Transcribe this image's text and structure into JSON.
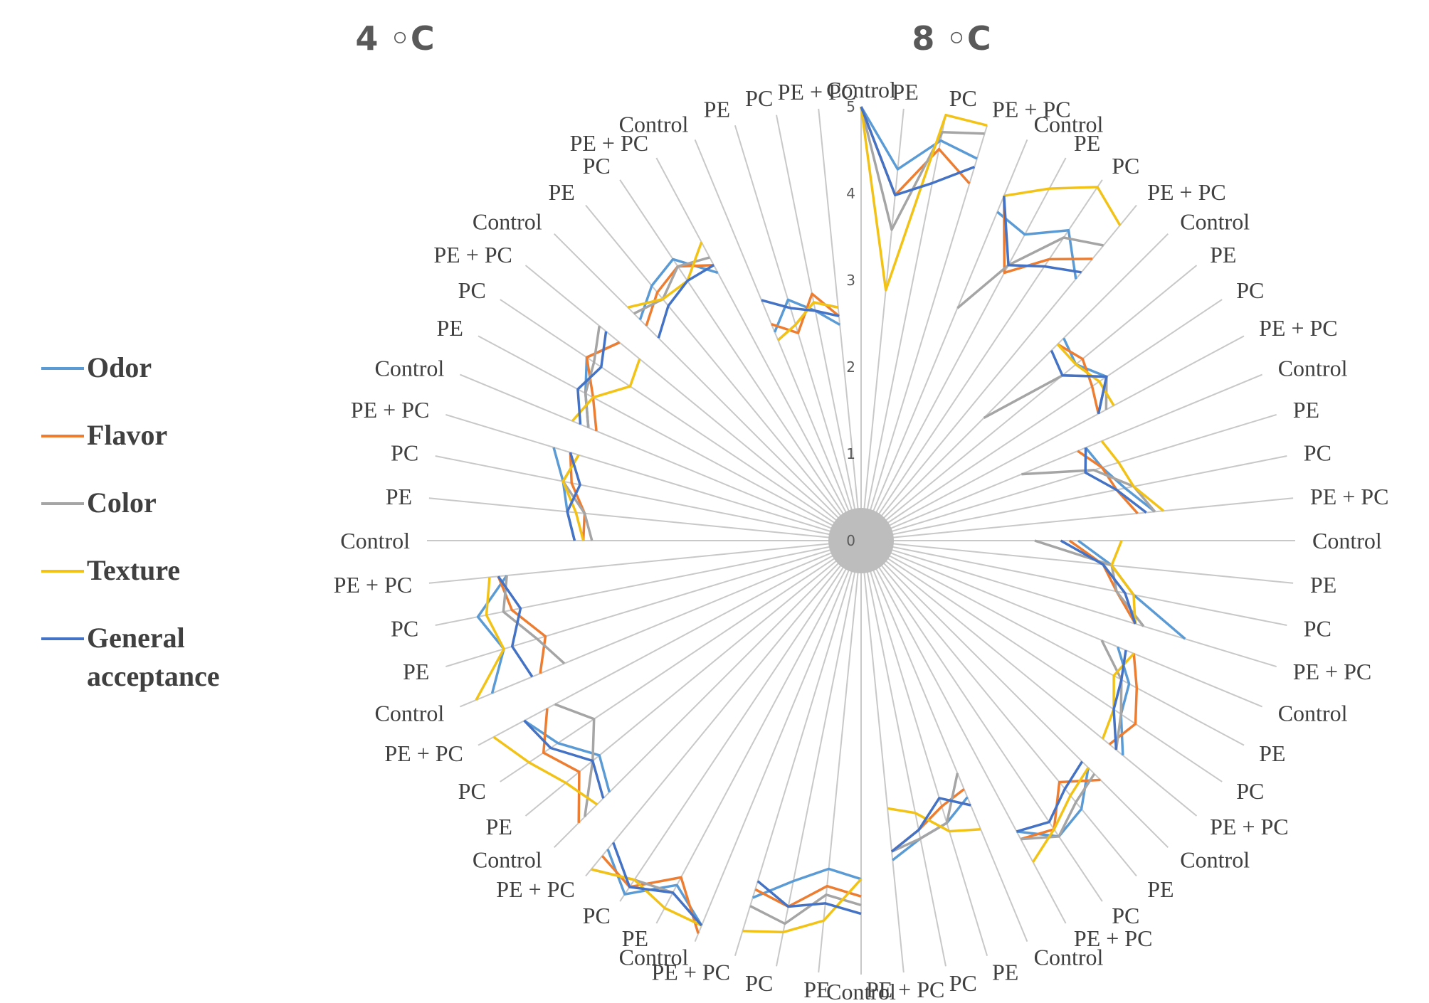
{
  "chart_data": {
    "type": "radar",
    "titles": [
      "4 ◦C",
      "8 ◦C"
    ],
    "radial_ticks": [
      "0",
      "1",
      "2",
      "3",
      "4",
      "5"
    ],
    "rlim": [
      0,
      5
    ],
    "legend_placement": "left",
    "axis_labels": [
      "Control",
      "PE",
      "PC",
      "PE + PC",
      "Control",
      "PE",
      "PC",
      "PE + PC",
      "Control",
      "PE",
      "PC",
      "PE + PC",
      "Control",
      "PE",
      "PC",
      "PE + PC",
      "Control",
      "PE",
      "PC",
      "PE + PC",
      "Control",
      "PE",
      "PC",
      "PE + PC",
      "Control",
      "PE",
      "PC",
      "PE + PC",
      "Control",
      "PE",
      "PC",
      "PE + PC",
      "Control",
      "PE",
      "PC",
      "PE + PC",
      "Control",
      "PE",
      "PC",
      "PE + PC",
      "Control",
      "PE",
      "PC",
      "PE + PC",
      "Control",
      "PE",
      "PC",
      "PE + PC",
      "Control",
      "PE",
      "PC",
      "PE + PC",
      "Control",
      "PE",
      "PC",
      "PE + PC",
      "Control",
      "PE",
      "PC",
      "PE + PC",
      "Control",
      "PE",
      "PC",
      "PE + PC"
    ],
    "series": [
      {
        "name": "Odor",
        "color": "#5B9BD5",
        "values": [
          5,
          4.3,
          4.7,
          4.6,
          4.1,
          4.0,
          4.3,
          3.9,
          3.3,
          3.2,
          3.4,
          3.1,
          2.8,
          2.9,
          3.1,
          3.4,
          2.5,
          2.9,
          3.2,
          3.9,
          3.2,
          3.5,
          3.6,
          3.9,
          3.7,
          4.0,
          4.1,
          3.8,
          3.2,
          3.4,
          3.5,
          3.7,
          3.9,
          3.8,
          4.0,
          4.3,
          4.8,
          4.5,
          4.9,
          4.6,
          4.1,
          3.9,
          4.2,
          4.4,
          4.6,
          4.3,
          4.5,
          4.1,
          3.3,
          3.4,
          3.5,
          3.7,
          3.4,
          3.6,
          3.8,
          3.6,
          3.6,
          3.8,
          3.9,
          3.5,
          2.6,
          2.9,
          2.7,
          2.5
        ]
      },
      {
        "name": "Flavor",
        "color": "#ED7D31",
        "values": [
          5,
          4.0,
          4.6,
          4.3,
          4.3,
          3.5,
          3.9,
          4.2,
          3.2,
          3.3,
          3.2,
          3.1,
          2.7,
          2.9,
          3.0,
          3.2,
          2.4,
          2.8,
          3.0,
          3.3,
          3.4,
          3.6,
          3.8,
          3.7,
          3.9,
          3.6,
          4.0,
          3.9,
          3.1,
          3.2,
          3.4,
          3.6,
          4.1,
          4.0,
          4.3,
          4.2,
          4.9,
          4.4,
          4.8,
          4.7,
          4.6,
          4.2,
          4.4,
          4.1,
          4.0,
          3.8,
          4.1,
          4.2,
          3.2,
          3.2,
          3.4,
          3.5,
          3.3,
          3.5,
          3.8,
          3.6,
          3.5,
          3.7,
          3.8,
          3.6,
          2.7,
          2.5,
          2.9,
          2.6
        ]
      },
      {
        "name": "Color",
        "color": "#A5A5A5",
        "values": [
          5,
          3.6,
          4.8,
          4.9,
          2.9,
          3.6,
          4.2,
          4.4,
          2.0,
          3.0,
          3.4,
          3.2,
          2.0,
          2.8,
          3.2,
          3.4,
          2.0,
          2.9,
          3.0,
          3.4,
          3.0,
          3.4,
          3.6,
          3.8,
          3.8,
          3.9,
          4.1,
          3.9,
          2.9,
          3.4,
          3.5,
          3.6,
          4.2,
          4.1,
          4.5,
          4.4,
          4.8,
          4.6,
          4.7,
          4.9,
          4.5,
          4.0,
          3.7,
          4.0,
          3.7,
          3.9,
          4.2,
          4.1,
          3.1,
          3.2,
          3.5,
          3.4,
          3.4,
          3.6,
          3.7,
          3.9,
          3.7,
          3.6,
          3.8,
          3.7,
          2.5,
          2.6,
          2.8,
          2.7
        ]
      },
      {
        "name": "Texture",
        "color": "#F2C316",
        "values": [
          5,
          2.9,
          5.0,
          5.0,
          4.3,
          4.6,
          4.9,
          4.7,
          3.2,
          3.2,
          3.3,
          3.3,
          3.0,
          3.1,
          3.2,
          3.5,
          3.0,
          2.9,
          3.2,
          3.3,
          3.4,
          3.3,
          3.5,
          3.6,
          3.7,
          3.8,
          4.0,
          4.2,
          3.6,
          3.5,
          3.2,
          3.1,
          3.9,
          4.4,
          4.6,
          4.7,
          4.8,
          4.8,
          4.7,
          4.9,
          4.3,
          4.4,
          4.6,
          4.8,
          4.8,
          4.3,
          4.4,
          4.3,
          3.2,
          3.3,
          3.5,
          3.4,
          3.6,
          3.5,
          3.2,
          3.3,
          3.8,
          3.6,
          3.6,
          3.9,
          2.5,
          2.6,
          2.8,
          2.7
        ]
      },
      {
        "name": "General acceptance",
        "color": "#4472C4",
        "values": [
          5,
          4.0,
          4.2,
          4.5,
          4.3,
          3.6,
          3.8,
          4.0,
          3.1,
          3.0,
          3.4,
          3.1,
          2.8,
          2.7,
          3.0,
          3.3,
          2.3,
          2.8,
          3.1,
          3.3,
          3.3,
          3.4,
          3.5,
          3.8,
          3.6,
          3.7,
          3.9,
          3.8,
          3.3,
          3.1,
          3.4,
          3.6,
          4.3,
          4.2,
          4.3,
          4.1,
          4.8,
          4.6,
          4.8,
          4.5,
          4.2,
          4.0,
          4.3,
          4.4,
          4.1,
          4.2,
          4.0,
          4.2,
          3.3,
          3.4,
          3.3,
          3.5,
          3.5,
          3.7,
          3.6,
          3.8,
          3.3,
          3.5,
          3.6,
          3.6,
          3.0,
          2.8,
          2.7,
          2.6
        ]
      }
    ]
  }
}
